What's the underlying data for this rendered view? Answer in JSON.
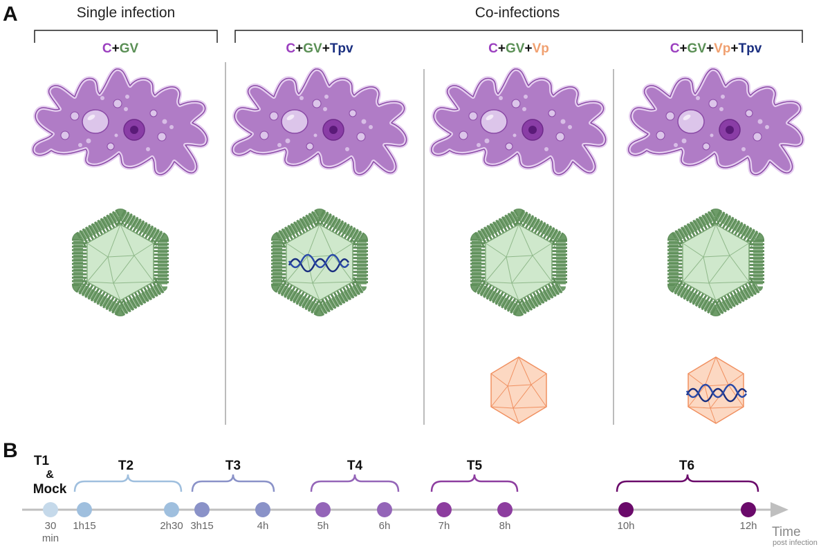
{
  "panel_a": {
    "letter": "A",
    "single_title": "Single infection",
    "co_title": "Co-infections",
    "columns": [
      {
        "parts": [
          {
            "text": "C",
            "color": "#9b3fbf"
          },
          {
            "text": "+",
            "color": "#111111"
          },
          {
            "text": "GV",
            "color": "#5a8f55"
          }
        ],
        "gv_dna": false,
        "vp": false,
        "vp_dna": false
      },
      {
        "parts": [
          {
            "text": "C",
            "color": "#9b3fbf"
          },
          {
            "text": "+",
            "color": "#111111"
          },
          {
            "text": "GV",
            "color": "#5a8f55"
          },
          {
            "text": "+",
            "color": "#111111"
          },
          {
            "text": "Tpv",
            "color": "#1a2f80"
          }
        ],
        "gv_dna": true,
        "vp": false,
        "vp_dna": false
      },
      {
        "parts": [
          {
            "text": "C",
            "color": "#9b3fbf"
          },
          {
            "text": "+",
            "color": "#111111"
          },
          {
            "text": "GV",
            "color": "#5a8f55"
          },
          {
            "text": "+",
            "color": "#111111"
          },
          {
            "text": "Vp",
            "color": "#f0a070"
          }
        ],
        "gv_dna": false,
        "vp": true,
        "vp_dna": false
      },
      {
        "parts": [
          {
            "text": "C",
            "color": "#9b3fbf"
          },
          {
            "text": "+",
            "color": "#111111"
          },
          {
            "text": "GV",
            "color": "#5a8f55"
          },
          {
            "text": "+",
            "color": "#111111"
          },
          {
            "text": "Vp",
            "color": "#f0a070"
          },
          {
            "text": "+",
            "color": "#111111"
          },
          {
            "text": "Tpv",
            "color": "#1a2f80"
          }
        ],
        "gv_dna": false,
        "vp": true,
        "vp_dna": true
      }
    ]
  },
  "panel_b": {
    "letter": "B",
    "axis_label": "Time",
    "axis_sublabel": "post infection",
    "mock_label": "Mock",
    "amp": "&",
    "timepoints": [
      {
        "line1": "30",
        "line2": "min",
        "color": "#c5d9ea"
      },
      {
        "line1": "1h15",
        "line2": "",
        "color": "#9fbfde"
      },
      {
        "line1": "2h30",
        "line2": "",
        "color": "#9fbfde"
      },
      {
        "line1": "3h15",
        "line2": "",
        "color": "#8a92c8"
      },
      {
        "line1": "4h",
        "line2": "",
        "color": "#8a92c8"
      },
      {
        "line1": "5h",
        "line2": "",
        "color": "#9465b8"
      },
      {
        "line1": "6h",
        "line2": "",
        "color": "#9465b8"
      },
      {
        "line1": "7h",
        "line2": "",
        "color": "#8d3d9f"
      },
      {
        "line1": "8h",
        "line2": "",
        "color": "#8d3d9f"
      },
      {
        "line1": "10h",
        "line2": "",
        "color": "#6a0a6a"
      },
      {
        "line1": "12h",
        "line2": "",
        "color": "#6a0a6a"
      }
    ],
    "groups": [
      {
        "label": "T1",
        "color": "#111111"
      },
      {
        "label": "T2",
        "color": "#9fbfde"
      },
      {
        "label": "T3",
        "color": "#8a92c8"
      },
      {
        "label": "T4",
        "color": "#9465b8"
      },
      {
        "label": "T5",
        "color": "#8d3d9f"
      },
      {
        "label": "T6",
        "color": "#6a0a6a"
      }
    ]
  },
  "colors": {
    "amoeba_fill": "#b07cc6",
    "amoeba_edge": "#8a4aa6",
    "amoeba_rim": "#e6cff0",
    "gv_fill": "#cfe8cc",
    "gv_edge": "#7aa574",
    "gv_fiber": "#5f8f5a",
    "vp_fill": "#fcd8c2",
    "vp_edge": "#f09060",
    "dna": "#1a2f80",
    "divider": "#bbbbbb",
    "axis": "#bfbfbf"
  }
}
